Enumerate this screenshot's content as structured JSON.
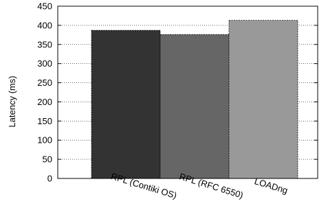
{
  "chart_data": {
    "type": "bar",
    "title": "",
    "xlabel": "",
    "ylabel": "Latency (ms)",
    "categories": [
      "RPL (Contiki OS)",
      "RPL (RFC 6550)",
      "LOADng"
    ],
    "values": [
      387,
      376,
      413
    ],
    "colors": [
      "#333333",
      "#666666",
      "#999999"
    ],
    "ylim": [
      0,
      450
    ],
    "yticks": [
      0,
      50,
      100,
      150,
      200,
      250,
      300,
      350,
      400,
      450
    ],
    "grid": true,
    "legend": "none"
  }
}
